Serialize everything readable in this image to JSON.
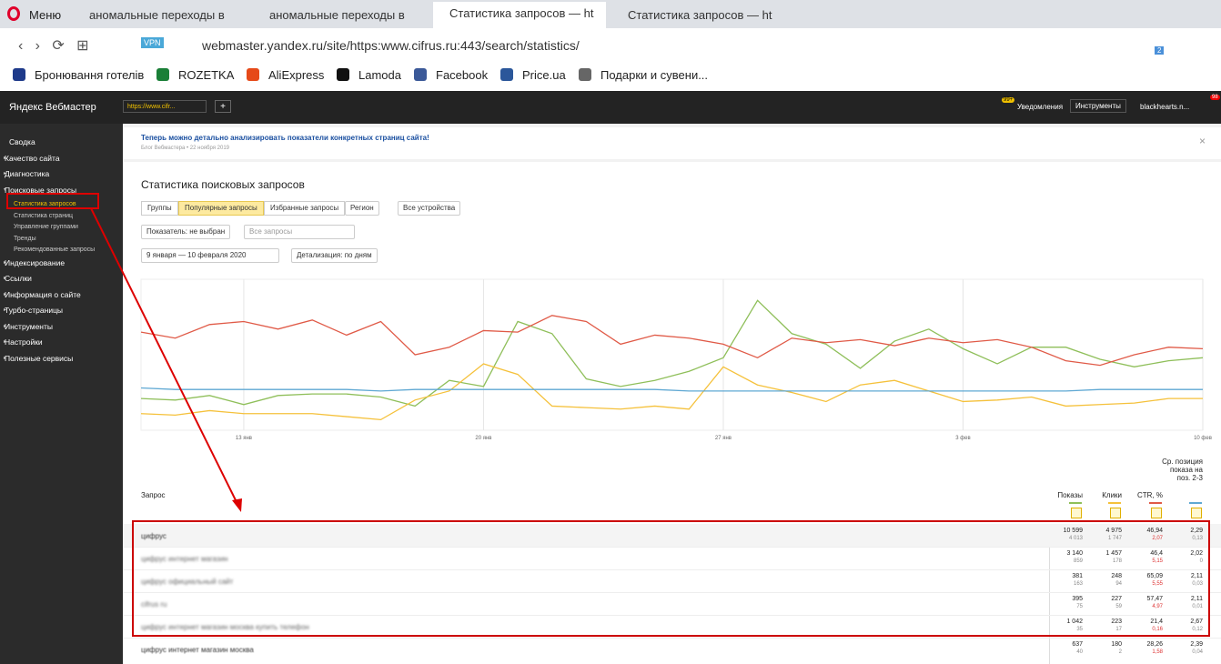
{
  "browser": {
    "menu": "Меню",
    "tabs": [
      "аномальные переходы в",
      "аномальные переходы в",
      "Статистика запросов — ht",
      "Статистика запросов — ht"
    ],
    "vpn": "VPN",
    "url": "webmaster.yandex.ru/site/https:www.cifrus.ru:443/search/statistics/",
    "ext_badge": "2",
    "bookmarks": [
      "Бронювання готелів",
      "ROZETKA",
      "AliExpress",
      "Lamoda",
      "Facebook",
      "Price.ua",
      "Подарки и сувени..."
    ]
  },
  "header": {
    "logo": "Яндекс Вебмастер",
    "site": "https://www.cifr...",
    "plus": "+",
    "notif_badge": "99+",
    "notifications": "Уведомления",
    "tools": "Инструменты",
    "user": "blackhearts.n...",
    "user_badge": "98"
  },
  "sidebar": [
    {
      "label": "Сводка"
    },
    {
      "label": "Качество сайта"
    },
    {
      "label": "Диагностика"
    },
    {
      "label": "Поисковые запросы"
    },
    {
      "label": "Статистика запросов",
      "sub": true
    },
    {
      "label": "Статистика страниц",
      "sub": true
    },
    {
      "label": "Управление группами",
      "sub": true
    },
    {
      "label": "Тренды",
      "sub": true
    },
    {
      "label": "Рекомендованные запросы",
      "sub": true
    },
    {
      "label": "Индексирование"
    },
    {
      "label": "Ссылки"
    },
    {
      "label": "Информация о сайте"
    },
    {
      "label": "Турбо-страницы"
    },
    {
      "label": "Инструменты"
    },
    {
      "label": "Настройки"
    },
    {
      "label": "Полезные сервисы"
    }
  ],
  "banner": {
    "title": "Теперь можно детально анализировать показатели конкретных страниц сайта!",
    "meta": "Блог Вебмастера • 22 ноября 2019"
  },
  "page": {
    "title": "Статистика поисковых запросов",
    "tabs": [
      "Группы",
      "Популярные запросы",
      "Избранные запросы"
    ],
    "region": "Регион",
    "devices": "Все устройства",
    "indicator": "Показатель: не выбран",
    "queries": "Все запросы",
    "dates": "9 января — 10 февраля 2020",
    "detail": "Детализация: по дням"
  },
  "chart_data": {
    "type": "line",
    "categories": [
      null,
      null,
      null,
      "13 янв",
      null,
      null,
      null,
      null,
      null,
      null,
      "20 янв",
      null,
      null,
      null,
      null,
      null,
      null,
      "27 янв",
      null,
      null,
      null,
      null,
      null,
      null,
      "3 фев",
      null,
      null,
      null,
      null,
      null,
      null,
      "10 фев"
    ],
    "ylim": [
      0,
      100
    ],
    "grid": true,
    "series": [
      {
        "name": "Показы",
        "color": "#8fbf5a",
        "values": [
          21,
          20,
          23,
          17,
          23,
          24,
          24,
          22,
          16,
          33,
          29,
          72,
          64,
          34,
          29,
          33,
          39,
          48,
          86,
          64,
          57,
          41,
          59,
          67,
          54,
          44,
          55,
          55,
          47,
          42,
          46,
          48
        ]
      },
      {
        "name": "Клики",
        "color": "#f5c13b",
        "values": [
          11,
          10,
          13,
          11,
          11,
          11,
          9,
          7,
          20,
          26,
          44,
          37,
          16,
          15,
          14,
          16,
          14,
          42,
          30,
          25,
          19,
          30,
          33,
          26,
          19,
          20,
          22,
          16,
          17,
          18,
          21,
          21
        ]
      },
      {
        "name": "CTR, %",
        "color": "#e05a47",
        "values": [
          65,
          61,
          70,
          72,
          67,
          73,
          63,
          72,
          50,
          55,
          66,
          65,
          76,
          72,
          57,
          63,
          61,
          57,
          48,
          61,
          58,
          60,
          56,
          61,
          58,
          60,
          55,
          46,
          43,
          50,
          55,
          54
        ]
      },
      {
        "name": "Ср. позиция показа на поз. 2-3",
        "color": "#5fa8d3",
        "values": [
          28,
          27,
          27,
          27,
          27,
          27,
          27,
          26,
          27,
          27,
          27,
          27,
          27,
          27,
          27,
          27,
          26,
          26,
          26,
          26,
          26,
          26,
          26,
          26,
          26,
          26,
          26,
          26,
          27,
          27,
          27,
          27
        ]
      }
    ]
  },
  "table": {
    "query_header": "Запрос",
    "rows": [
      {
        "query": "цифрус",
        "cells": [
          [
            "10 599",
            "4 013"
          ],
          [
            "4 975",
            "1 747"
          ],
          [
            "46,94",
            "2,07"
          ],
          [
            "2,29",
            "0,13"
          ]
        ]
      },
      {
        "query": "цифрус интернет магазин",
        "cells": [
          [
            "3 140",
            "859"
          ],
          [
            "1 457",
            "178"
          ],
          [
            "46,4",
            "5,15"
          ],
          [
            "2,02",
            "0"
          ]
        ]
      },
      {
        "query": "цифрус официальный сайт",
        "cells": [
          [
            "381",
            "163"
          ],
          [
            "248",
            "94"
          ],
          [
            "65,09",
            "5,55"
          ],
          [
            "2,11",
            "0,03"
          ]
        ]
      },
      {
        "query": "cifrus ru",
        "cells": [
          [
            "395",
            "75"
          ],
          [
            "227",
            "59"
          ],
          [
            "57,47",
            "4,97"
          ],
          [
            "2,11",
            "0,01"
          ]
        ]
      },
      {
        "query": "цифрус интернет магазин москва купить телефон",
        "cells": [
          [
            "1 042",
            "35"
          ],
          [
            "223",
            "17"
          ],
          [
            "21,4",
            "0,16"
          ],
          [
            "2,67",
            "0,12"
          ]
        ]
      },
      {
        "query": "цифрус интернет магазин москва",
        "cells": [
          [
            "637",
            "40"
          ],
          [
            "180",
            "2"
          ],
          [
            "28,26",
            "1,58"
          ],
          [
            "2,39",
            "0,04"
          ]
        ]
      }
    ]
  }
}
